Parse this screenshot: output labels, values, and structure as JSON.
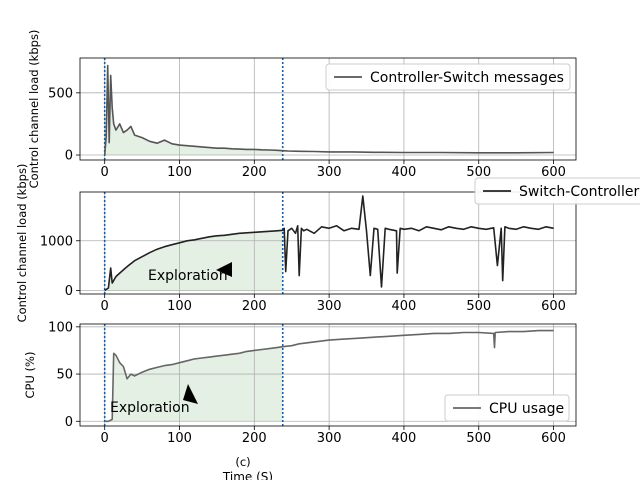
{
  "chart_data": [
    {
      "type": "line",
      "panel_label": "",
      "ylabel": "Control channel load (kbps)",
      "xlim": [
        -33,
        630
      ],
      "ylim": [
        -40,
        780
      ],
      "xticks": [
        0,
        100,
        200,
        300,
        400,
        500,
        600
      ],
      "yticks": [
        0,
        500
      ],
      "grid": true,
      "legend_position": "upper right",
      "vlines": [
        0,
        238
      ],
      "shaded_region": [
        0,
        238
      ],
      "annotations": [],
      "series": [
        {
          "name": "Controller-Switch messages",
          "color": "#555555",
          "x": [
            0,
            2,
            4,
            6,
            8,
            10,
            12,
            15,
            20,
            25,
            30,
            35,
            40,
            50,
            60,
            70,
            80,
            90,
            100,
            110,
            120,
            130,
            140,
            150,
            160,
            170,
            180,
            190,
            200,
            210,
            220,
            230,
            238,
            245,
            260,
            280,
            300,
            330,
            360,
            400,
            450,
            500,
            550,
            600
          ],
          "y": [
            0,
            150,
            720,
            100,
            640,
            380,
            250,
            200,
            250,
            180,
            200,
            230,
            160,
            140,
            110,
            95,
            120,
            90,
            80,
            75,
            70,
            65,
            60,
            55,
            55,
            50,
            48,
            45,
            45,
            42,
            40,
            38,
            35,
            32,
            30,
            28,
            25,
            25,
            22,
            20,
            20,
            18,
            18,
            20
          ]
        }
      ]
    },
    {
      "type": "line",
      "panel_label": "",
      "ylabel": "Control channel load (kbps)",
      "xlim": [
        -33,
        630
      ],
      "ylim": [
        -70,
        1980
      ],
      "xticks": [
        0,
        100,
        200,
        300,
        400,
        500,
        600
      ],
      "yticks": [
        0,
        1000
      ],
      "grid": true,
      "legend_position": "upper right",
      "vlines": [
        0,
        238
      ],
      "shaded_region": [
        0,
        238
      ],
      "annotations": [
        {
          "text": "Exploration",
          "x": 112,
          "y": 280
        }
      ],
      "series": [
        {
          "name": "Switch-Controller",
          "color": "#222222",
          "x": [
            0,
            5,
            8,
            10,
            15,
            20,
            30,
            40,
            50,
            60,
            70,
            80,
            90,
            100,
            110,
            120,
            130,
            140,
            150,
            160,
            170,
            180,
            190,
            200,
            210,
            220,
            230,
            238,
            240,
            242,
            245,
            250,
            255,
            258,
            260,
            263,
            266,
            270,
            280,
            290,
            300,
            310,
            320,
            330,
            340,
            345,
            350,
            355,
            360,
            365,
            370,
            375,
            380,
            390,
            391,
            395,
            400,
            410,
            420,
            430,
            440,
            450,
            460,
            470,
            480,
            490,
            500,
            510,
            520,
            525,
            530,
            532,
            535,
            540,
            550,
            560,
            570,
            580,
            590,
            600
          ],
          "y": [
            0,
            50,
            450,
            150,
            280,
            350,
            480,
            600,
            680,
            760,
            830,
            880,
            920,
            960,
            1000,
            1020,
            1050,
            1080,
            1100,
            1110,
            1130,
            1150,
            1160,
            1170,
            1180,
            1190,
            1200,
            1210,
            1250,
            380,
            1200,
            1250,
            1150,
            1300,
            300,
            1250,
            1200,
            1230,
            1150,
            1280,
            1250,
            1300,
            1200,
            1250,
            1230,
            1900,
            1200,
            300,
            1250,
            1230,
            70,
            1250,
            1230,
            1200,
            350,
            1250,
            1230,
            1250,
            1200,
            1280,
            1250,
            1220,
            1280,
            1250,
            1230,
            1280,
            1250,
            1230,
            1260,
            500,
            1250,
            200,
            1280,
            1250,
            1230,
            1280,
            1250,
            1230,
            1280,
            1250
          ]
        }
      ]
    },
    {
      "type": "line",
      "panel_label": "(c)",
      "xlabel": "Time (S)",
      "ylabel": "CPU (%)",
      "xlim": [
        -33,
        630
      ],
      "ylim": [
        -5,
        103
      ],
      "xticks": [
        0,
        100,
        200,
        300,
        400,
        500,
        600
      ],
      "yticks": [
        0,
        50,
        100
      ],
      "grid": true,
      "legend_position": "lower right",
      "vlines": [
        0,
        238
      ],
      "shaded_region": [
        0,
        238
      ],
      "annotations": [
        {
          "text": "Exploration",
          "x": 25,
          "y": 15
        }
      ],
      "series": [
        {
          "name": "CPU usage",
          "color": "#666666",
          "x": [
            0,
            5,
            10,
            12,
            15,
            20,
            25,
            30,
            35,
            40,
            50,
            60,
            70,
            80,
            90,
            100,
            110,
            120,
            130,
            140,
            150,
            160,
            170,
            180,
            190,
            200,
            210,
            220,
            230,
            238,
            250,
            260,
            280,
            300,
            320,
            340,
            360,
            380,
            400,
            420,
            440,
            460,
            480,
            500,
            520,
            521,
            522,
            540,
            560,
            580,
            600
          ],
          "y": [
            0,
            0,
            2,
            72,
            70,
            62,
            58,
            45,
            50,
            48,
            52,
            55,
            57,
            59,
            60,
            62,
            64,
            66,
            67,
            68,
            69,
            70,
            71,
            72,
            74,
            75,
            76,
            77,
            78,
            79,
            80,
            82,
            84,
            86,
            87,
            88,
            89,
            90,
            91,
            92,
            93,
            93,
            94,
            94,
            93,
            78,
            94,
            95,
            95,
            96,
            96
          ]
        }
      ]
    }
  ]
}
